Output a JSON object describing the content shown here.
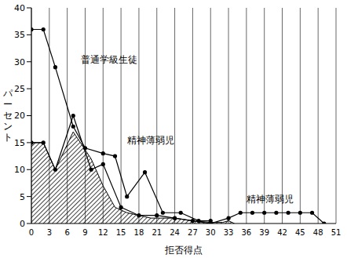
{
  "chart_data": {
    "type": "line",
    "x_label": "拒否得点",
    "y_label": "パーセント",
    "xlim": [
      0,
      51
    ],
    "xticks": [
      0,
      3,
      6,
      9,
      12,
      15,
      18,
      21,
      24,
      27,
      30,
      33,
      36,
      39,
      42,
      45,
      48,
      51
    ],
    "ylim": [
      0,
      40
    ],
    "yticks": [
      0,
      5,
      10,
      15,
      20,
      25,
      30,
      35,
      40
    ],
    "grid": true,
    "series": [
      {
        "name": "普通学級生徒",
        "type": "line",
        "color": "#000000",
        "marker": "circle",
        "x": [
          0,
          2,
          4,
          7,
          9,
          12,
          14,
          16,
          19,
          22,
          25,
          28,
          30
        ],
        "values": [
          36,
          36,
          29,
          18,
          14,
          13,
          12.5,
          5,
          9.5,
          2,
          2,
          0.5,
          0.5
        ]
      },
      {
        "name": "精神薄弱児",
        "type": "line",
        "color": "#000000",
        "marker": "circle",
        "x": [
          0,
          2,
          4,
          7,
          10,
          12,
          15,
          18,
          21,
          24,
          27,
          30,
          33,
          35,
          37,
          39,
          41,
          43,
          45,
          47,
          49
        ],
        "values": [
          15,
          15,
          10,
          20,
          10,
          11,
          3,
          1.5,
          1.5,
          1,
          0.5,
          0,
          1,
          2,
          2,
          2,
          2,
          2,
          2,
          2,
          0
        ]
      },
      {
        "type": "area",
        "color": "#000000",
        "x": [
          0,
          2,
          4,
          7,
          10,
          12,
          14,
          16,
          18,
          20,
          24,
          27,
          30,
          32,
          33,
          34
        ],
        "values": [
          15,
          15,
          10,
          17,
          12,
          7,
          3,
          2,
          1.5,
          1,
          1,
          0.5,
          0.2,
          0.2,
          0.5,
          0
        ]
      }
    ]
  }
}
